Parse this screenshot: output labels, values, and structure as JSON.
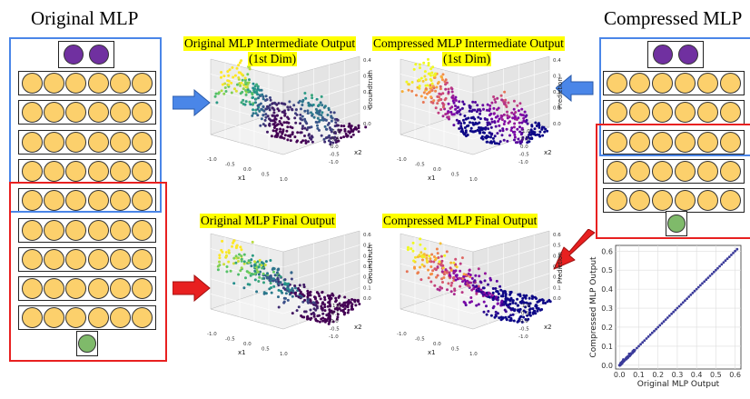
{
  "left": {
    "title": "Original MLP",
    "hidden_layers": 9
  },
  "right": {
    "title": "Compressed MLP",
    "hidden_layers": 5
  },
  "plots": {
    "orig_intermediate": {
      "label_line1": "Original MLP Intermediate Output",
      "label_line2": "(1st Dim)",
      "zlabel": "Groundtruth",
      "zticks": [
        "0.4",
        "0.3",
        "0.2",
        "0.1",
        "0.0"
      ]
    },
    "comp_intermediate": {
      "label_line1": "Compressed MLP Intermediate Output",
      "label_line2": "(1st Dim)",
      "zlabel": "Prediction",
      "zticks": [
        "0.4",
        "0.3",
        "0.2",
        "0.1",
        "0.0"
      ]
    },
    "orig_final": {
      "label_line1": "Original MLP Final Output",
      "zlabel": "Groundtruth",
      "zticks": [
        "0.6",
        "0.5",
        "0.4",
        "0.3",
        "0.2",
        "0.1",
        "0.0"
      ]
    },
    "comp_final": {
      "label_line1": "Compressed MLP Final Output",
      "zlabel": "Prediction",
      "zticks": [
        "0.6",
        "0.5",
        "0.4",
        "0.3",
        "0.2",
        "0.1",
        "0.0"
      ]
    }
  },
  "axes3d": {
    "x1_label": "x1",
    "x2_label": "x2",
    "x1_ticks": [
      "-1.0",
      "-0.5",
      "0.0",
      "0.5",
      "1.0"
    ],
    "x2_ticks": [
      "1.0",
      "0.5",
      "0.0",
      "-0.5",
      "-1.0"
    ]
  },
  "chart_data": {
    "type": "scatter",
    "xlabel": "Original MLP Output",
    "ylabel": "Compressed MLP Output",
    "xticks": [
      "0.0",
      "0.1",
      "0.2",
      "0.3",
      "0.4",
      "0.5",
      "0.6"
    ],
    "yticks": [
      "0.0",
      "0.1",
      "0.2",
      "0.3",
      "0.4",
      "0.5",
      "0.6"
    ],
    "xlim": [
      -0.02,
      0.63
    ],
    "ylim": [
      -0.02,
      0.63
    ],
    "grid": true,
    "point_color": "#3a3a9a",
    "points": [
      [
        0.0,
        0.0
      ],
      [
        0.01,
        0.01
      ],
      [
        0.02,
        0.02
      ],
      [
        0.02,
        0.03
      ],
      [
        0.03,
        0.03
      ],
      [
        0.04,
        0.04
      ],
      [
        0.05,
        0.05
      ],
      [
        0.05,
        0.06
      ],
      [
        0.06,
        0.06
      ],
      [
        0.07,
        0.07
      ],
      [
        0.08,
        0.08
      ],
      [
        0.09,
        0.09
      ],
      [
        0.1,
        0.1
      ],
      [
        0.11,
        0.11
      ],
      [
        0.12,
        0.12
      ],
      [
        0.13,
        0.13
      ],
      [
        0.14,
        0.14
      ],
      [
        0.15,
        0.15
      ],
      [
        0.16,
        0.16
      ],
      [
        0.17,
        0.17
      ],
      [
        0.18,
        0.18
      ],
      [
        0.19,
        0.19
      ],
      [
        0.2,
        0.2
      ],
      [
        0.21,
        0.21
      ],
      [
        0.22,
        0.22
      ],
      [
        0.23,
        0.23
      ],
      [
        0.24,
        0.24
      ],
      [
        0.25,
        0.25
      ],
      [
        0.26,
        0.26
      ],
      [
        0.27,
        0.27
      ],
      [
        0.28,
        0.28
      ],
      [
        0.29,
        0.29
      ],
      [
        0.3,
        0.3
      ],
      [
        0.31,
        0.31
      ],
      [
        0.32,
        0.32
      ],
      [
        0.33,
        0.33
      ],
      [
        0.34,
        0.34
      ],
      [
        0.35,
        0.35
      ],
      [
        0.36,
        0.36
      ],
      [
        0.37,
        0.37
      ],
      [
        0.38,
        0.38
      ],
      [
        0.39,
        0.39
      ],
      [
        0.4,
        0.4
      ],
      [
        0.41,
        0.41
      ],
      [
        0.42,
        0.42
      ],
      [
        0.43,
        0.43
      ],
      [
        0.44,
        0.44
      ],
      [
        0.45,
        0.45
      ],
      [
        0.46,
        0.46
      ],
      [
        0.47,
        0.47
      ],
      [
        0.48,
        0.48
      ],
      [
        0.49,
        0.49
      ],
      [
        0.5,
        0.5
      ],
      [
        0.51,
        0.51
      ],
      [
        0.52,
        0.52
      ],
      [
        0.53,
        0.53
      ],
      [
        0.54,
        0.54
      ],
      [
        0.55,
        0.55
      ],
      [
        0.56,
        0.56
      ],
      [
        0.57,
        0.57
      ],
      [
        0.58,
        0.58
      ],
      [
        0.59,
        0.59
      ],
      [
        0.6,
        0.6
      ],
      [
        0.61,
        0.61
      ]
    ]
  },
  "colors": {
    "blue_box": "#4a86e8",
    "red_box": "#e82020",
    "arrow_blue": "#4a86e8",
    "arrow_red": "#e82020",
    "neuron": "#fcd06c",
    "input": "#7030a0",
    "output": "#7fba6a",
    "highlight": "#ffff00"
  },
  "icons": {
    "arrow": "block-arrow-icon"
  }
}
